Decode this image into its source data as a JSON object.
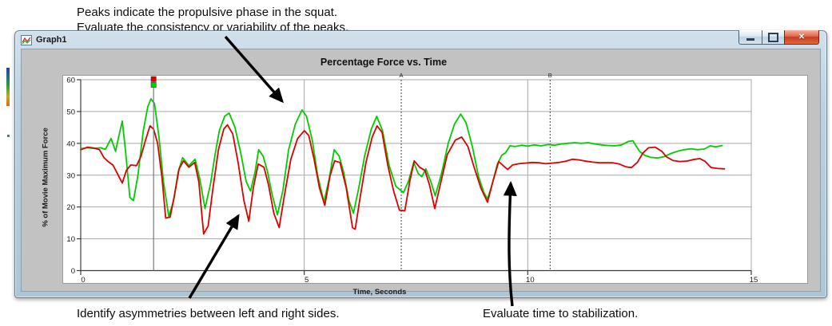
{
  "annotations": {
    "top_line1": "Peaks indicate the propulsive phase in the squat.",
    "top_line2": "Evaluate the consistency or variability of the peaks.",
    "bottom_left": "Identify asymmetries between left and right sides.",
    "bottom_right": "Evaluate time to stabilization."
  },
  "window": {
    "title": "Graph1",
    "controls": {
      "minimize_icon": "minimize-icon",
      "maximize_icon": "maximize-icon",
      "close_icon": "close-icon",
      "close_glyph": "✕"
    }
  },
  "chart_data": {
    "type": "line",
    "title": "Percentage Force vs. Time",
    "xlabel": "Time, Seconds",
    "ylabel": "% of Movie Maximum Force",
    "xlim": [
      0,
      15
    ],
    "ylim": [
      0,
      60
    ],
    "x_ticks": [
      0,
      5,
      10,
      15
    ],
    "y_ticks": [
      0,
      10,
      20,
      30,
      40,
      50,
      60
    ],
    "grid": true,
    "legend": "none",
    "colors": {
      "green_series": "#00cc00",
      "red_series": "#dd0000",
      "grid": "#a8a8a8",
      "axis": "#3c3c3c",
      "marker_line": "#444444",
      "cursor_line": "#787878"
    },
    "event_markers": [
      {
        "label": "A",
        "time": 7.17
      },
      {
        "label": "B",
        "time": 10.5
      }
    ],
    "cursor": {
      "time": 1.63,
      "top_marker_colors": [
        "#dd0000",
        "#00cc00"
      ]
    },
    "series": [
      {
        "name": "green-force-trace",
        "color": "#00cc00",
        "points": [
          [
            0,
            38.3
          ],
          [
            0.15,
            38.6
          ],
          [
            0.3,
            38.4
          ],
          [
            0.45,
            38.6
          ],
          [
            0.55,
            38.1
          ],
          [
            0.68,
            41.5
          ],
          [
            0.78,
            37.5
          ],
          [
            0.88,
            44
          ],
          [
            0.93,
            47
          ],
          [
            1.0,
            38
          ],
          [
            1.1,
            23
          ],
          [
            1.18,
            22
          ],
          [
            1.28,
            30
          ],
          [
            1.4,
            44
          ],
          [
            1.5,
            51.5
          ],
          [
            1.57,
            54
          ],
          [
            1.65,
            52.5
          ],
          [
            1.75,
            42
          ],
          [
            1.85,
            28
          ],
          [
            1.97,
            17
          ],
          [
            2.08,
            22
          ],
          [
            2.18,
            31
          ],
          [
            2.28,
            35.5
          ],
          [
            2.42,
            33
          ],
          [
            2.56,
            35
          ],
          [
            2.66,
            29
          ],
          [
            2.78,
            19.5
          ],
          [
            2.9,
            27
          ],
          [
            3.0,
            36
          ],
          [
            3.1,
            44
          ],
          [
            3.22,
            48.5
          ],
          [
            3.32,
            49.5
          ],
          [
            3.45,
            45
          ],
          [
            3.58,
            37
          ],
          [
            3.7,
            28
          ],
          [
            3.8,
            25
          ],
          [
            3.9,
            31
          ],
          [
            3.98,
            38
          ],
          [
            4.08,
            36
          ],
          [
            4.18,
            31
          ],
          [
            4.28,
            24
          ],
          [
            4.4,
            17.5
          ],
          [
            4.52,
            25
          ],
          [
            4.65,
            38
          ],
          [
            4.8,
            46
          ],
          [
            4.95,
            50.5
          ],
          [
            5.05,
            48.5
          ],
          [
            5.18,
            41
          ],
          [
            5.3,
            30
          ],
          [
            5.44,
            21.5
          ],
          [
            5.56,
            29
          ],
          [
            5.67,
            38
          ],
          [
            5.78,
            36
          ],
          [
            5.88,
            31
          ],
          [
            6.0,
            22
          ],
          [
            6.1,
            18
          ],
          [
            6.22,
            26
          ],
          [
            6.35,
            36
          ],
          [
            6.5,
            44.5
          ],
          [
            6.62,
            48.5
          ],
          [
            6.75,
            44
          ],
          [
            6.9,
            33
          ],
          [
            7.05,
            26.5
          ],
          [
            7.22,
            24.5
          ],
          [
            7.33,
            28
          ],
          [
            7.45,
            34
          ],
          [
            7.55,
            30.5
          ],
          [
            7.63,
            29.5
          ],
          [
            7.72,
            32
          ],
          [
            7.83,
            28
          ],
          [
            7.93,
            23.5
          ],
          [
            8.08,
            31
          ],
          [
            8.22,
            40
          ],
          [
            8.36,
            46
          ],
          [
            8.5,
            49.2
          ],
          [
            8.62,
            46.5
          ],
          [
            8.76,
            39
          ],
          [
            8.9,
            29.5
          ],
          [
            9.02,
            24.5
          ],
          [
            9.1,
            22.5
          ],
          [
            9.2,
            27
          ],
          [
            9.32,
            33.5
          ],
          [
            9.42,
            36.3
          ],
          [
            9.5,
            37
          ],
          [
            9.6,
            39.2
          ],
          [
            9.72,
            39
          ],
          [
            9.86,
            39.4
          ],
          [
            10.0,
            39.1
          ],
          [
            10.15,
            39.5
          ],
          [
            10.3,
            39.2
          ],
          [
            10.45,
            39.6
          ],
          [
            10.6,
            39.4
          ],
          [
            10.75,
            39.8
          ],
          [
            10.9,
            40
          ],
          [
            11.05,
            40.2
          ],
          [
            11.2,
            40
          ],
          [
            11.35,
            40.2
          ],
          [
            11.5,
            39.8
          ],
          [
            11.65,
            39.5
          ],
          [
            11.8,
            39.3
          ],
          [
            11.95,
            39.2
          ],
          [
            12.1,
            39.5
          ],
          [
            12.25,
            40.6
          ],
          [
            12.35,
            40.8
          ],
          [
            12.5,
            37.5
          ],
          [
            12.62,
            36.2
          ],
          [
            12.75,
            35.6
          ],
          [
            12.9,
            35.4
          ],
          [
            13.05,
            35.8
          ],
          [
            13.2,
            36.8
          ],
          [
            13.35,
            37.5
          ],
          [
            13.5,
            38
          ],
          [
            13.65,
            38.3
          ],
          [
            13.8,
            38
          ],
          [
            13.95,
            38.2
          ],
          [
            14.08,
            39.2
          ],
          [
            14.2,
            38.9
          ],
          [
            14.35,
            39.3
          ]
        ]
      },
      {
        "name": "red-force-trace",
        "color": "#dd0000",
        "points": [
          [
            0,
            38
          ],
          [
            0.15,
            38.8
          ],
          [
            0.3,
            38.5
          ],
          [
            0.42,
            38
          ],
          [
            0.52,
            35.5
          ],
          [
            0.62,
            34.2
          ],
          [
            0.72,
            33.2
          ],
          [
            0.82,
            30.5
          ],
          [
            0.93,
            27.5
          ],
          [
            1.02,
            31.5
          ],
          [
            1.12,
            33.2
          ],
          [
            1.25,
            33
          ],
          [
            1.35,
            36
          ],
          [
            1.45,
            41
          ],
          [
            1.55,
            45.5
          ],
          [
            1.63,
            44.5
          ],
          [
            1.72,
            40
          ],
          [
            1.82,
            29
          ],
          [
            1.9,
            16.5
          ],
          [
            2.0,
            16.8
          ],
          [
            2.1,
            24
          ],
          [
            2.2,
            32
          ],
          [
            2.3,
            34.5
          ],
          [
            2.42,
            32.5
          ],
          [
            2.55,
            34
          ],
          [
            2.64,
            28
          ],
          [
            2.75,
            11.5
          ],
          [
            2.85,
            14
          ],
          [
            2.95,
            25
          ],
          [
            3.08,
            38
          ],
          [
            3.2,
            44.5
          ],
          [
            3.28,
            45.8
          ],
          [
            3.4,
            43
          ],
          [
            3.52,
            34
          ],
          [
            3.65,
            22
          ],
          [
            3.76,
            15.5
          ],
          [
            3.86,
            26
          ],
          [
            3.97,
            33.5
          ],
          [
            4.1,
            32.5
          ],
          [
            4.2,
            27
          ],
          [
            4.32,
            18
          ],
          [
            4.44,
            13.5
          ],
          [
            4.56,
            24
          ],
          [
            4.7,
            35
          ],
          [
            4.85,
            41.5
          ],
          [
            5.0,
            44
          ],
          [
            5.1,
            42.5
          ],
          [
            5.22,
            35
          ],
          [
            5.34,
            26
          ],
          [
            5.46,
            20.5
          ],
          [
            5.58,
            30
          ],
          [
            5.68,
            34.5
          ],
          [
            5.8,
            34
          ],
          [
            5.94,
            26
          ],
          [
            6.08,
            13.5
          ],
          [
            6.14,
            13
          ],
          [
            6.25,
            23
          ],
          [
            6.38,
            34
          ],
          [
            6.52,
            42
          ],
          [
            6.63,
            45.5
          ],
          [
            6.74,
            43.5
          ],
          [
            6.87,
            33
          ],
          [
            7.0,
            25
          ],
          [
            7.13,
            19
          ],
          [
            7.25,
            18.8
          ],
          [
            7.36,
            28
          ],
          [
            7.46,
            34.5
          ],
          [
            7.58,
            32.5
          ],
          [
            7.7,
            31.5
          ],
          [
            7.8,
            27
          ],
          [
            7.92,
            19.5
          ],
          [
            8.06,
            28
          ],
          [
            8.2,
            36.5
          ],
          [
            8.38,
            41
          ],
          [
            8.52,
            42
          ],
          [
            8.66,
            39
          ],
          [
            8.8,
            32.5
          ],
          [
            8.95,
            26
          ],
          [
            9.1,
            21.5
          ],
          [
            9.22,
            28
          ],
          [
            9.35,
            34.3
          ],
          [
            9.45,
            33
          ],
          [
            9.55,
            31.8
          ],
          [
            9.66,
            33.2
          ],
          [
            9.8,
            33.6
          ],
          [
            9.95,
            33.8
          ],
          [
            10.1,
            34
          ],
          [
            10.25,
            33.9
          ],
          [
            10.4,
            33.6
          ],
          [
            10.55,
            33.8
          ],
          [
            10.7,
            34
          ],
          [
            10.85,
            34.4
          ],
          [
            11.0,
            35
          ],
          [
            11.15,
            34.8
          ],
          [
            11.3,
            34.4
          ],
          [
            11.45,
            34.1
          ],
          [
            11.6,
            33.9
          ],
          [
            11.75,
            33.9
          ],
          [
            11.9,
            33.9
          ],
          [
            12.05,
            33.5
          ],
          [
            12.2,
            32.6
          ],
          [
            12.32,
            32.4
          ],
          [
            12.45,
            34
          ],
          [
            12.58,
            37
          ],
          [
            12.7,
            38.6
          ],
          [
            12.85,
            38.8
          ],
          [
            13.0,
            37.5
          ],
          [
            13.1,
            35.8
          ],
          [
            13.25,
            34.6
          ],
          [
            13.4,
            34.3
          ],
          [
            13.55,
            34.4
          ],
          [
            13.7,
            34.9
          ],
          [
            13.85,
            35.2
          ],
          [
            13.97,
            34.3
          ],
          [
            14.1,
            32.4
          ],
          [
            14.25,
            32.1
          ],
          [
            14.4,
            32
          ]
        ]
      }
    ]
  }
}
